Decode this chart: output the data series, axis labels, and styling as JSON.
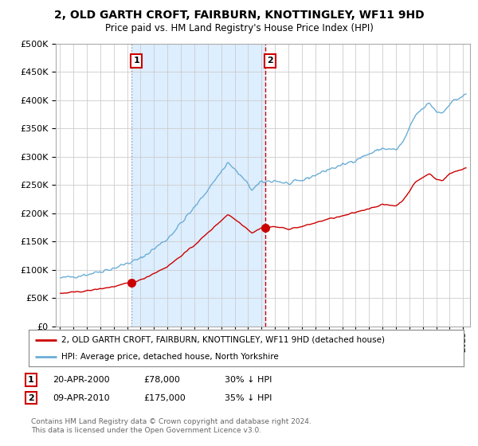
{
  "title": "2, OLD GARTH CROFT, FAIRBURN, KNOTTINGLEY, WF11 9HD",
  "subtitle": "Price paid vs. HM Land Registry's House Price Index (HPI)",
  "hpi_label": "HPI: Average price, detached house, North Yorkshire",
  "property_label": "2, OLD GARTH CROFT, FAIRBURN, KNOTTINGLEY, WF11 9HD (detached house)",
  "footer": "Contains HM Land Registry data © Crown copyright and database right 2024.\nThis data is licensed under the Open Government Licence v3.0.",
  "sale1_date": "20-APR-2000",
  "sale1_price": "£78,000",
  "sale1_hpi": "30% ↓ HPI",
  "sale2_date": "09-APR-2010",
  "sale2_price": "£175,000",
  "sale2_hpi": "35% ↓ HPI",
  "ylim": [
    0,
    500000
  ],
  "yticks": [
    0,
    50000,
    100000,
    150000,
    200000,
    250000,
    300000,
    350000,
    400000,
    450000,
    500000
  ],
  "hpi_color": "#6baed6",
  "property_color": "#cc0000",
  "vline1_color": "#999999",
  "vline2_color": "#cc0000",
  "shade_color": "#ddeeff",
  "background_color": "#ffffff",
  "grid_color": "#cccccc",
  "sale1_x": 2000.3,
  "sale2_x": 2010.27
}
